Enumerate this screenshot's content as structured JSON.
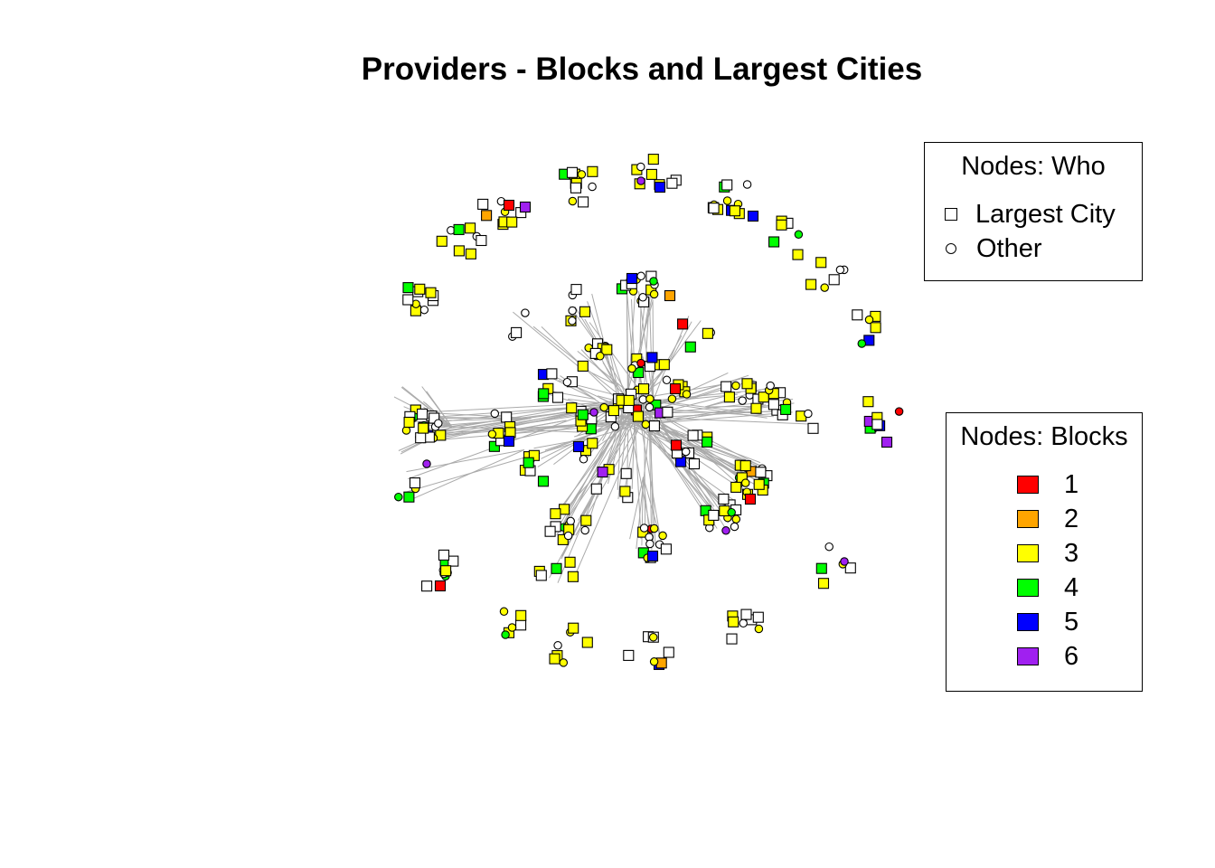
{
  "title": "Providers - Blocks and Largest Cities",
  "legend_who": {
    "title": "Nodes: Who",
    "items": [
      {
        "label": "Largest City",
        "shape": "square"
      },
      {
        "label": "Other",
        "shape": "circle"
      }
    ]
  },
  "legend_blocks": {
    "title": "Nodes: Blocks",
    "items": [
      {
        "label": "1",
        "color": "#ff0000"
      },
      {
        "label": "2",
        "color": "#ffa500"
      },
      {
        "label": "3",
        "color": "#ffff00"
      },
      {
        "label": "4",
        "color": "#00ff00"
      },
      {
        "label": "5",
        "color": "#0000ff"
      },
      {
        "label": "6",
        "color": "#a020f0"
      }
    ]
  },
  "colors": {
    "edge": "#aaaaaa",
    "none": "#ffffff",
    "block1": "#ff0000",
    "block2": "#ffa500",
    "block3": "#ffff00",
    "block4": "#00ff00",
    "block5": "#0000ff",
    "block6": "#a020f0"
  }
}
